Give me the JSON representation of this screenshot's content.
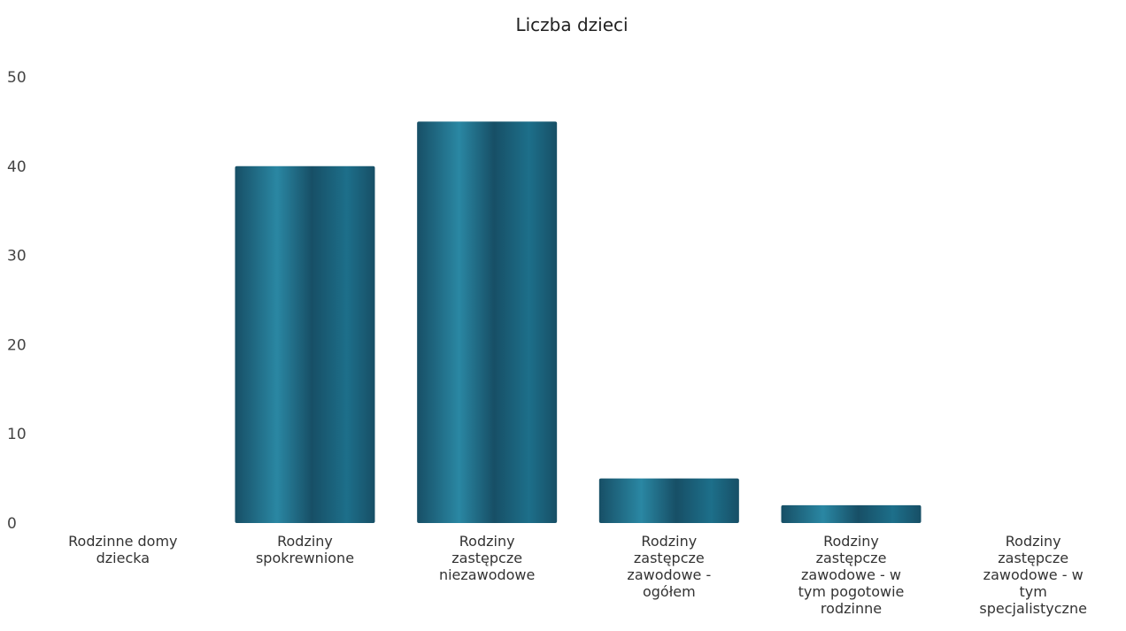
{
  "chart_data": {
    "type": "bar",
    "title": "Liczba dzieci",
    "categories": [
      [
        "Rodzinne domy",
        "dziecka"
      ],
      [
        "Rodziny",
        "spokrewnione"
      ],
      [
        "Rodziny",
        "zastępcze",
        "niezawodowe"
      ],
      [
        "Rodziny",
        "zastępcze",
        "zawodowe -",
        "ogółem"
      ],
      [
        "Rodziny",
        "zastępcze",
        "zawodowe - w",
        "tym pogotowie",
        "rodzinne"
      ],
      [
        "Rodziny",
        "zastępcze",
        "zawodowe - w",
        "tym",
        "specjalistyczne"
      ]
    ],
    "values": [
      0,
      40,
      45,
      5,
      2,
      0
    ],
    "ylim": [
      0,
      50
    ],
    "yticks": [
      0,
      10,
      20,
      30,
      40,
      50
    ],
    "xlabel": "",
    "ylabel": "",
    "grid": false,
    "legend": "none",
    "bar_color": "#1d6f8a",
    "bar_color_dark": "#174f66",
    "bar_color_light": "#2a87a3"
  }
}
